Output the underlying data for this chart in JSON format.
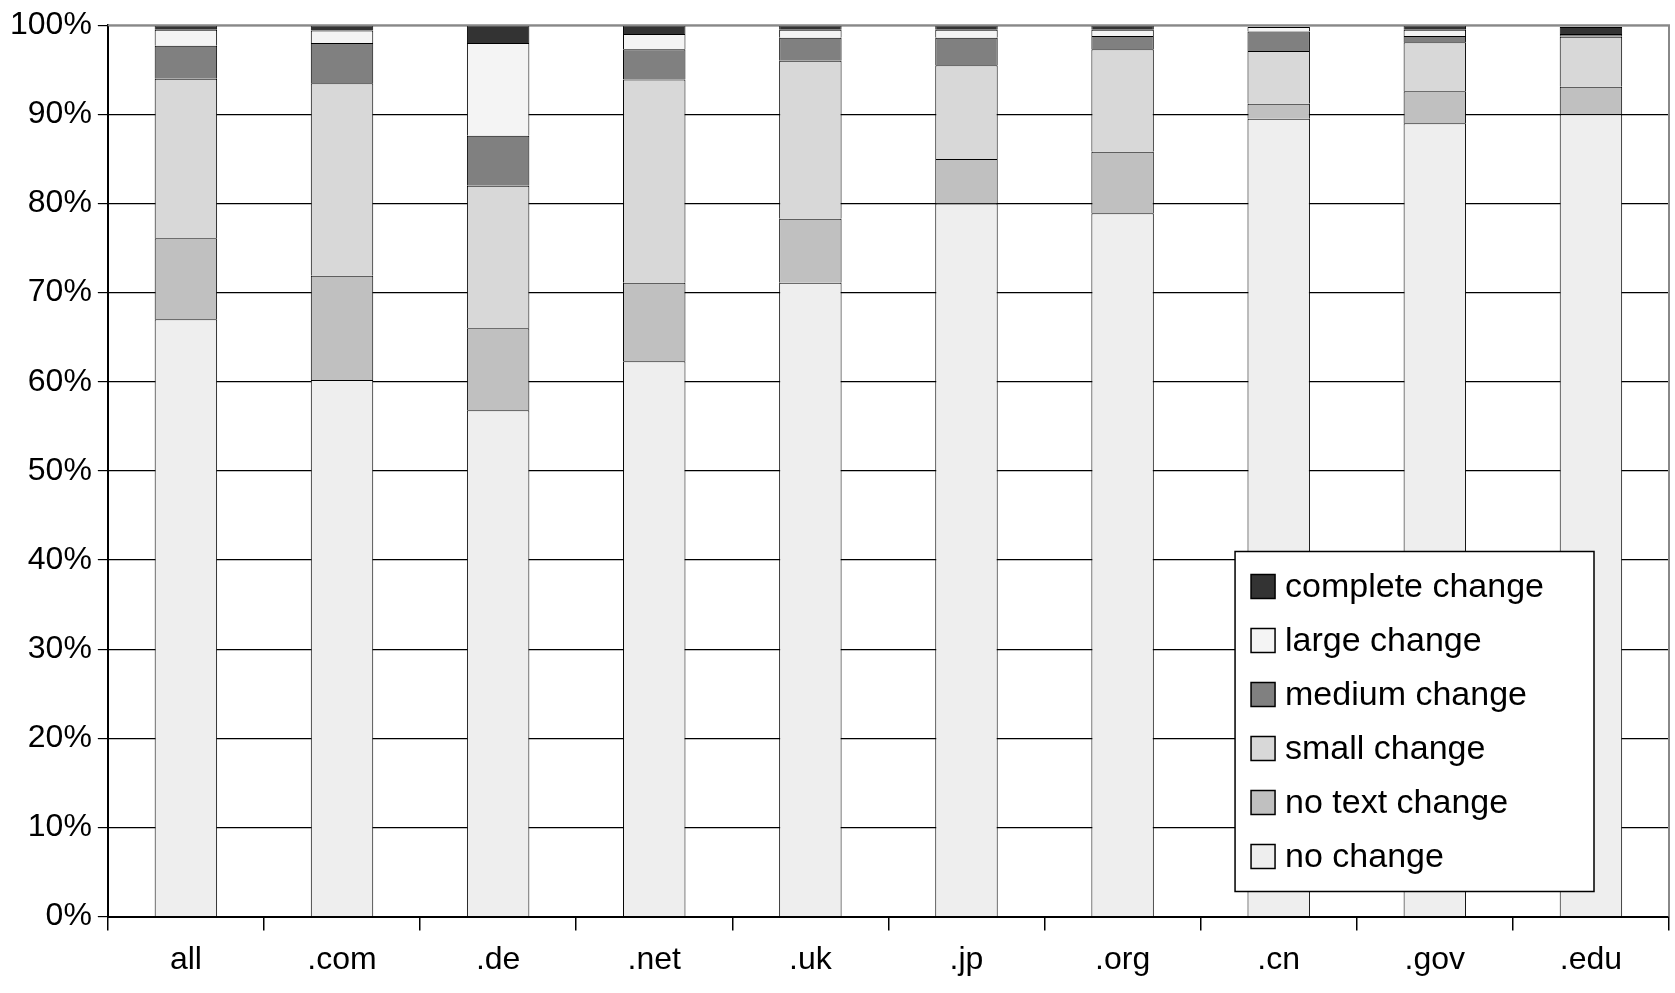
{
  "chart_data": {
    "type": "bar",
    "stacked": true,
    "categories": [
      "all",
      ".com",
      ".de",
      ".net",
      ".uk",
      ".jp",
      ".org",
      ".cn",
      ".gov",
      ".edu"
    ],
    "series": [
      {
        "name": "no change",
        "color": "#eeeeee",
        "values": [
          67.0,
          60.2,
          56.8,
          62.3,
          71.1,
          80.0,
          78.9,
          89.5,
          89.0,
          90.0
        ]
      },
      {
        "name": "no text change",
        "color": "#c0c0c0",
        "values": [
          9.1,
          11.7,
          9.2,
          8.8,
          7.2,
          5.0,
          6.9,
          1.7,
          3.6,
          3.1
        ]
      },
      {
        "name": "small change",
        "color": "#d8d8d8",
        "values": [
          17.9,
          21.6,
          16.0,
          22.8,
          17.7,
          10.5,
          11.5,
          5.9,
          5.5,
          5.6
        ]
      },
      {
        "name": "medium change",
        "color": "#808080",
        "values": [
          3.7,
          4.5,
          5.6,
          3.4,
          2.6,
          3.1,
          1.5,
          2.2,
          0.7,
          0.3
        ]
      },
      {
        "name": "large change",
        "color": "#f4f4f4",
        "values": [
          1.8,
          1.4,
          10.4,
          1.7,
          0.9,
          0.9,
          0.7,
          0.5,
          0.7,
          null
        ]
      },
      {
        "name": "complete change",
        "color": "#333333",
        "values": [
          0.5,
          0.6,
          2.0,
          1.0,
          0.5,
          0.5,
          0.5,
          null,
          0.5,
          0.8
        ]
      }
    ],
    "ylim": [
      0,
      100
    ],
    "yticks": [
      {
        "value": 0,
        "label": "0%"
      },
      {
        "value": 10,
        "label": "10%"
      },
      {
        "value": 20,
        "label": "20%"
      },
      {
        "value": 30,
        "label": "30%"
      },
      {
        "value": 40,
        "label": "40%"
      },
      {
        "value": 50,
        "label": "50%"
      },
      {
        "value": 60,
        "label": "60%"
      },
      {
        "value": 70,
        "label": "70%"
      },
      {
        "value": 80,
        "label": "80%"
      },
      {
        "value": 90,
        "label": "90%"
      },
      {
        "value": 100,
        "label": "100%"
      }
    ],
    "grid": "y",
    "legend": "bottom right"
  }
}
